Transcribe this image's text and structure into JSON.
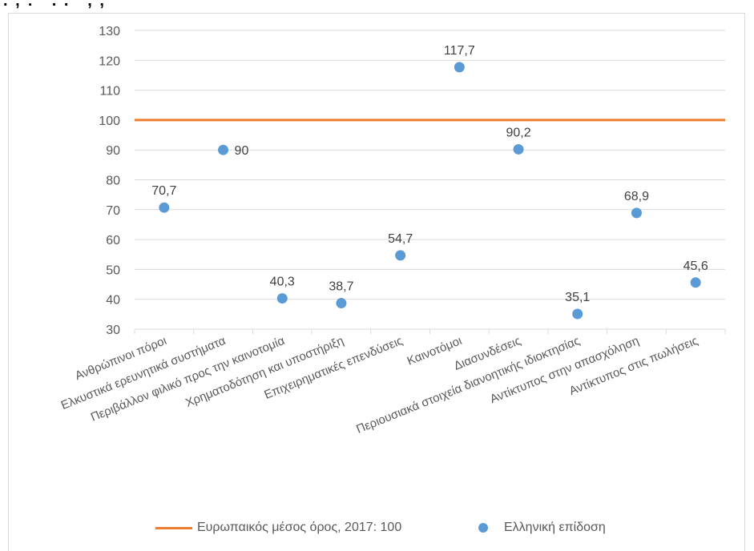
{
  "chart_data": {
    "type": "scatter",
    "ylim": [
      30,
      130
    ],
    "yticks": [
      30,
      40,
      50,
      60,
      70,
      80,
      90,
      100,
      110,
      120,
      130
    ],
    "grid": true,
    "legend_position": "bottom",
    "categories": [
      "Ανθρώπινοι πόροι",
      "Ελκυστικά ερευνητικά συστήματα",
      "Περιβάλλον φιλικό προς την καινοτομία",
      "Χρηματοδότηση και υποστήριξη",
      "Επιχειρηματικές επενδύσεις",
      "Καινοτόμοι",
      "Διασυνδέσεις",
      "Περιουσιακά στοιχεία διανοητικής ιδιοκτησίας",
      "Αντίκτυπος στην απασχόληση",
      "Αντίκτυπος στις πωλήσεις"
    ],
    "series": [
      {
        "name": "Ευρωπαικός μέσος όρος, 2017: 100",
        "kind": "line",
        "color": "#ed7d31",
        "value": 100
      },
      {
        "name": "Ελληνική επίδοση",
        "kind": "scatter",
        "color": "#5b9bd5",
        "values": [
          70.7,
          90,
          40.3,
          38.7,
          54.7,
          117.7,
          90.2,
          35.1,
          68.9,
          45.6
        ],
        "labels": [
          "70,7",
          "90",
          "40,3",
          "38,7",
          "54,7",
          "117,7",
          "90,2",
          "35,1",
          "68,9",
          "45,6"
        ]
      }
    ]
  },
  "legend": {
    "line_label": "Ευρωπαικός μέσος όρος, 2017: 100",
    "dot_label": "Ελληνική επίδοση"
  }
}
